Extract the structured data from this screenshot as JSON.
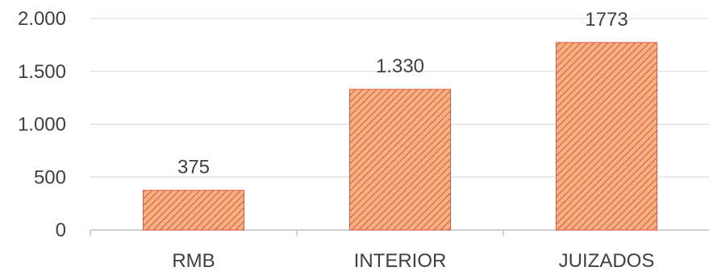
{
  "chart_data": {
    "type": "bar",
    "categories": [
      "RMB",
      "INTERIOR",
      "JUIZADOS"
    ],
    "values": [
      375,
      1330,
      1773
    ],
    "data_labels": [
      "375",
      "1.330",
      "1773"
    ],
    "title": "",
    "xlabel": "",
    "ylabel": "",
    "ylim": [
      0,
      2000
    ],
    "yticks": [
      0,
      500,
      1000,
      1500,
      2000
    ],
    "ytick_labels": [
      "0",
      "500",
      "1.000",
      "1.500",
      "2.000"
    ],
    "grid": true,
    "legend": "none",
    "bar_fill_color": "#f4b183",
    "bar_hatch_color": "#e2583e",
    "gridline_color": "#d9d9d9",
    "axis_color": "#bfbfbf",
    "text_color": "#404040"
  }
}
